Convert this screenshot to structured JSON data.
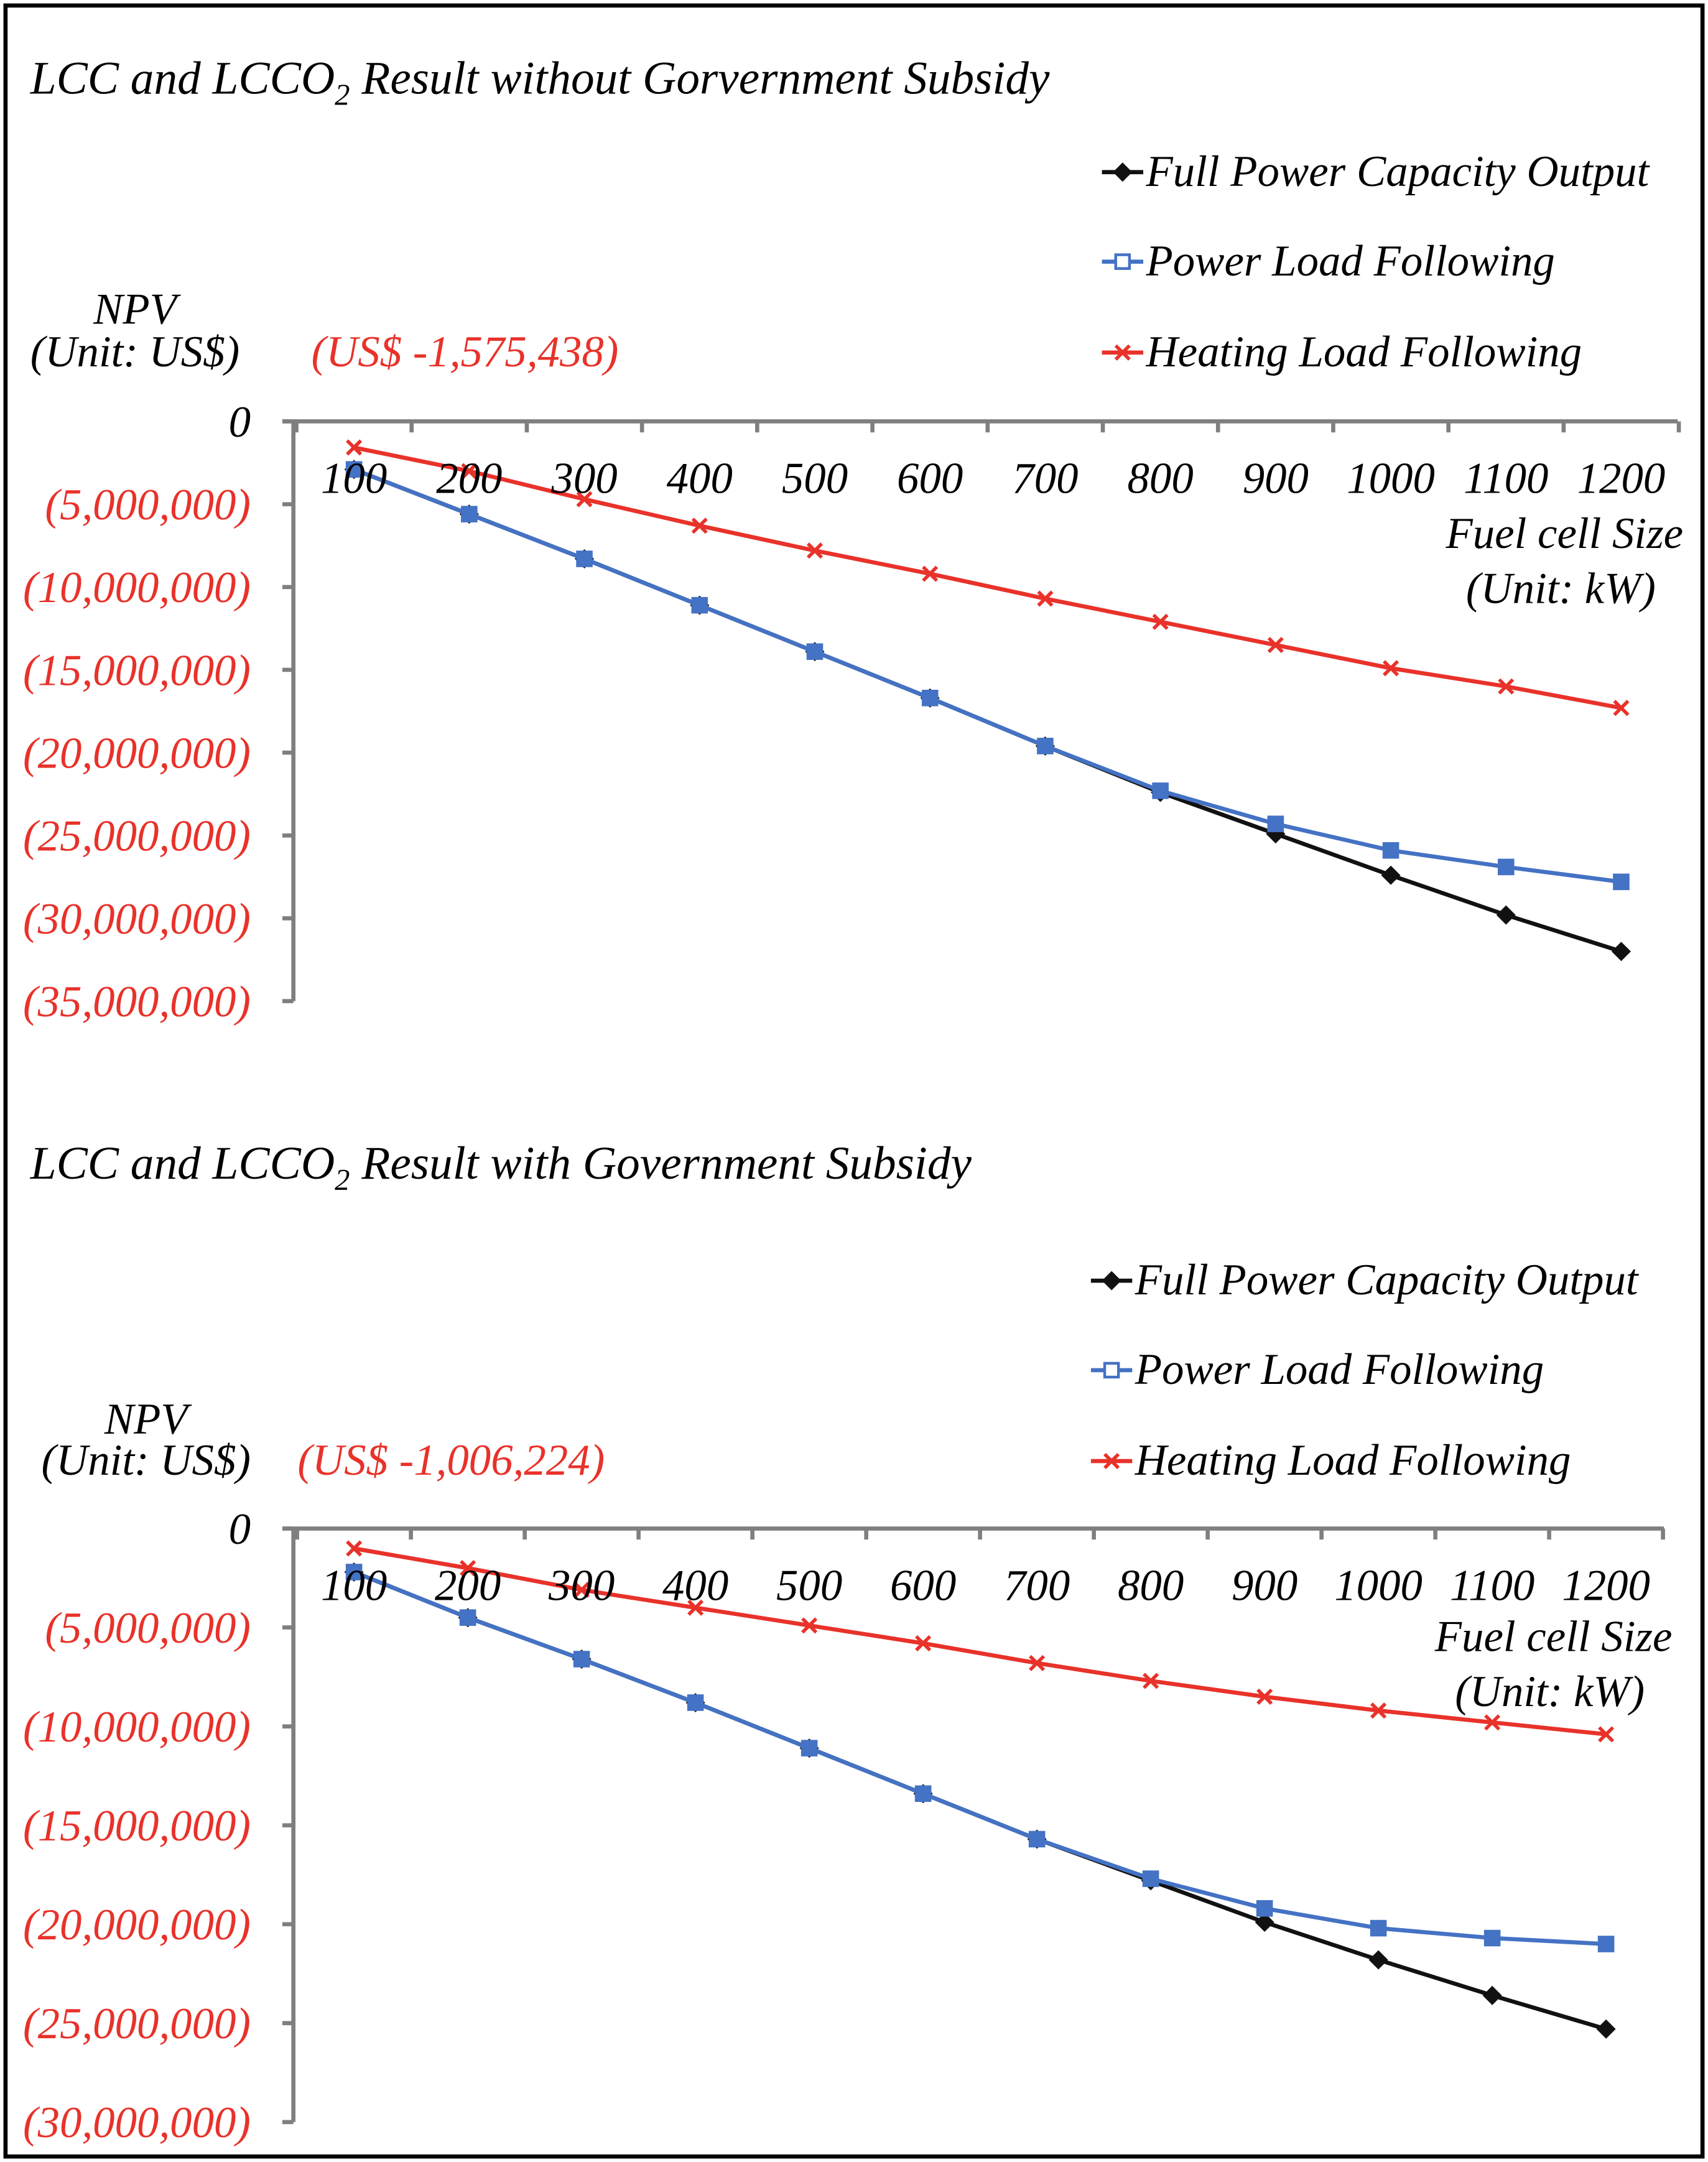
{
  "colors": {
    "full": "#111111",
    "power": "#4472c4",
    "heating": "#e8322a",
    "negative_label": "#e8322a",
    "axis": "#7f7f7f"
  },
  "chart_data": [
    {
      "type": "line",
      "title_prefix": "LCC and LCCO",
      "title_sub": "2",
      "title_suffix": " Result without Gorvernment Subsidy",
      "ylabel_line1": "NPV",
      "ylabel_line2": "(Unit: US$)",
      "annotation": "(US$ -1,575,438)",
      "xlabel_line1": "Fuel cell Size",
      "xlabel_line2": "(Unit: kW)",
      "categories": [
        "100",
        "200",
        "300",
        "400",
        "500",
        "600",
        "700",
        "800",
        "900",
        "1000",
        "1100",
        "1200"
      ],
      "ylim": [
        -35000000,
        0
      ],
      "yticks": [
        0,
        -5000000,
        -10000000,
        -15000000,
        -20000000,
        -25000000,
        -30000000,
        -35000000
      ],
      "ytick_labels": [
        "0",
        "(5,000,000)",
        "(10,000,000)",
        "(15,000,000)",
        "(20,000,000)",
        "(25,000,000)",
        "(30,000,000)",
        "(35,000,000)"
      ],
      "legend_position": "top-right",
      "series": [
        {
          "name": "Full Power Capacity Output",
          "key": "full",
          "marker": "diamond",
          "values": [
            -2900000,
            -5600000,
            -8300000,
            -11100000,
            -13900000,
            -16700000,
            -19600000,
            -22400000,
            -24900000,
            -27400000,
            -29800000,
            -32000000
          ]
        },
        {
          "name": "Power Load Following",
          "key": "power",
          "marker": "square",
          "values": [
            -2900000,
            -5600000,
            -8300000,
            -11100000,
            -13900000,
            -16700000,
            -19600000,
            -22300000,
            -24300000,
            -25900000,
            -26900000,
            -27800000
          ]
        },
        {
          "name": "Heating Load Following",
          "key": "heating",
          "marker": "x",
          "values": [
            -1575438,
            -3000000,
            -4700000,
            -6300000,
            -7800000,
            -9200000,
            -10700000,
            -12100000,
            -13500000,
            -14900000,
            -16000000,
            -17300000
          ]
        }
      ]
    },
    {
      "type": "line",
      "title_prefix": "LCC and LCCO",
      "title_sub": "2",
      "title_suffix": " Result with Government Subsidy",
      "ylabel_line1": "NPV",
      "ylabel_line2": "(Unit: US$)",
      "annotation": "(US$ -1,006,224)",
      "xlabel_line1": "Fuel cell Size",
      "xlabel_line2": "(Unit: kW)",
      "categories": [
        "100",
        "200",
        "300",
        "400",
        "500",
        "600",
        "700",
        "800",
        "900",
        "1000",
        "1100",
        "1200"
      ],
      "ylim": [
        -30000000,
        0
      ],
      "yticks": [
        0,
        -5000000,
        -10000000,
        -15000000,
        -20000000,
        -25000000,
        -30000000
      ],
      "ytick_labels": [
        "0",
        "(5,000,000)",
        "(10,000,000)",
        "(15,000,000)",
        "(20,000,000)",
        "(25,000,000)",
        "(30,000,000)"
      ],
      "legend_position": "top-right",
      "series": [
        {
          "name": "Full Power Capacity Output",
          "key": "full",
          "marker": "diamond",
          "values": [
            -2200000,
            -4500000,
            -6600000,
            -8800000,
            -11100000,
            -13400000,
            -15700000,
            -17800000,
            -19900000,
            -21800000,
            -23600000,
            -25300000
          ]
        },
        {
          "name": "Power Load Following",
          "key": "power",
          "marker": "square",
          "values": [
            -2200000,
            -4500000,
            -6600000,
            -8800000,
            -11100000,
            -13400000,
            -15700000,
            -17700000,
            -19200000,
            -20200000,
            -20700000,
            -21000000
          ]
        },
        {
          "name": "Heating Load Following",
          "key": "heating",
          "marker": "x",
          "values": [
            -1006224,
            -2000000,
            -3100000,
            -4000000,
            -4900000,
            -5800000,
            -6800000,
            -7700000,
            -8500000,
            -9200000,
            -9800000,
            -10400000
          ]
        }
      ]
    }
  ]
}
